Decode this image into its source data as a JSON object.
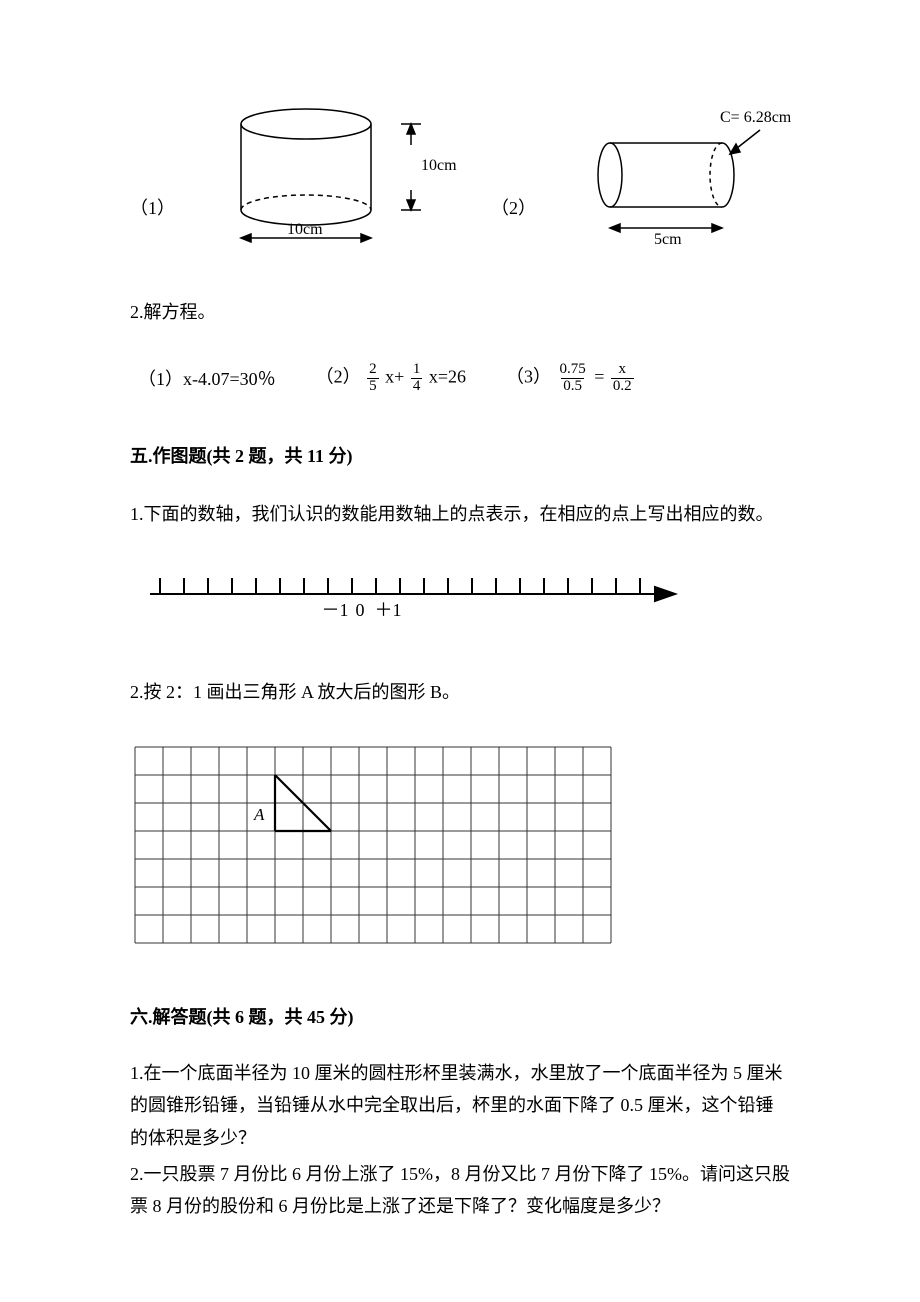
{
  "figures": {
    "cylinder_upright": {
      "label": "（1）",
      "diameter_label": "10cm",
      "height_label": "10cm",
      "stroke": "#000000",
      "fill": "#ffffff"
    },
    "cylinder_side": {
      "label": "（2）",
      "circumference_label": "C= 6.28cm",
      "length_label": "5cm",
      "stroke": "#000000",
      "fill": "#ffffff"
    }
  },
  "q2_heading": "2.解方程。",
  "equations": {
    "e1_label": "（1）x-4.07=30％",
    "e2_label_pre": "（2）",
    "e2_frac1_num": "2",
    "e2_frac1_den": "5",
    "e2_mid": " x+",
    "e2_frac2_num": "1",
    "e2_frac2_den": "4",
    "e2_post": " x=26",
    "e3_label_pre": "（3）",
    "e3_fracL_num": "0.75",
    "e3_fracL_den": "0.5",
    "e3_eq": " = ",
    "e3_fracR_num": "x",
    "e3_fracR_den": "0.2"
  },
  "section5": {
    "title": "五.作图题(共 2 题，共 11 分)",
    "q1": "1.下面的数轴，我们认识的数能用数轴上的点表示，在相应的点上写出相应的数。",
    "numberline": {
      "tick_count": 21,
      "labels": {
        "neg1": "－1",
        "zero": "0",
        "pos1": "＋1"
      },
      "stroke": "#000000"
    },
    "q2": "2.按 2：1 画出三角形 A 放大后的图形 B。",
    "grid": {
      "cols": 17,
      "rows": 7,
      "cell": 28,
      "stroke": "#333333",
      "triangle_label": "A",
      "triangle_label_style": "italic"
    }
  },
  "section6": {
    "title": "六.解答题(共 6 题，共 45 分)",
    "q1": "1.在一个底面半径为 10 厘米的圆柱形杯里装满水，水里放了一个底面半径为 5 厘米的圆锥形铅锤，当铅锤从水中完全取出后，杯里的水面下降了 0.5 厘米，这个铅锤的体积是多少？",
    "q2": "2.一只股票 7 月份比 6 月份上涨了 15%，8 月份又比 7 月份下降了 15%。请问这只股票 8 月份的股份和 6 月份比是上涨了还是下降了？变化幅度是多少？"
  }
}
